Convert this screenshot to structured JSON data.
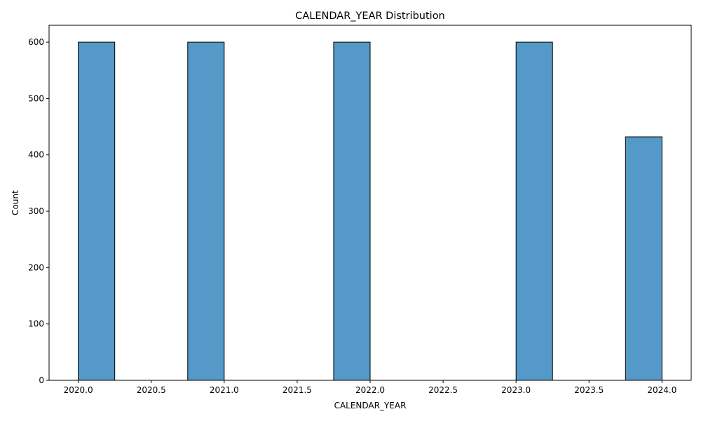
{
  "chart_data": {
    "type": "bar",
    "title": "CALENDAR_YEAR Distribution",
    "xlabel": "CALENDAR_YEAR",
    "ylabel": "Count",
    "xlim": [
      2019.8,
      2024.2
    ],
    "ylim": [
      0,
      630
    ],
    "x_ticks": [
      2020.0,
      2020.5,
      2021.0,
      2021.5,
      2022.0,
      2022.5,
      2023.0,
      2023.5,
      2024.0
    ],
    "x_tick_labels": [
      "2020.0",
      "2020.5",
      "2021.0",
      "2021.5",
      "2022.0",
      "2022.5",
      "2023.0",
      "2023.5",
      "2024.0"
    ],
    "y_ticks": [
      0,
      100,
      200,
      300,
      400,
      500,
      600
    ],
    "y_tick_labels": [
      "0",
      "100",
      "200",
      "300",
      "400",
      "500",
      "600"
    ],
    "bins": [
      {
        "x0": 2020.0,
        "x1": 2020.25,
        "count": 600
      },
      {
        "x0": 2020.75,
        "x1": 2021.0,
        "count": 600
      },
      {
        "x0": 2021.75,
        "x1": 2022.0,
        "count": 600
      },
      {
        "x0": 2023.0,
        "x1": 2023.25,
        "count": 600
      },
      {
        "x0": 2023.75,
        "x1": 2024.0,
        "count": 432
      }
    ],
    "grid": false,
    "bar_color": "#5499c7",
    "edge_color": "#000000"
  }
}
